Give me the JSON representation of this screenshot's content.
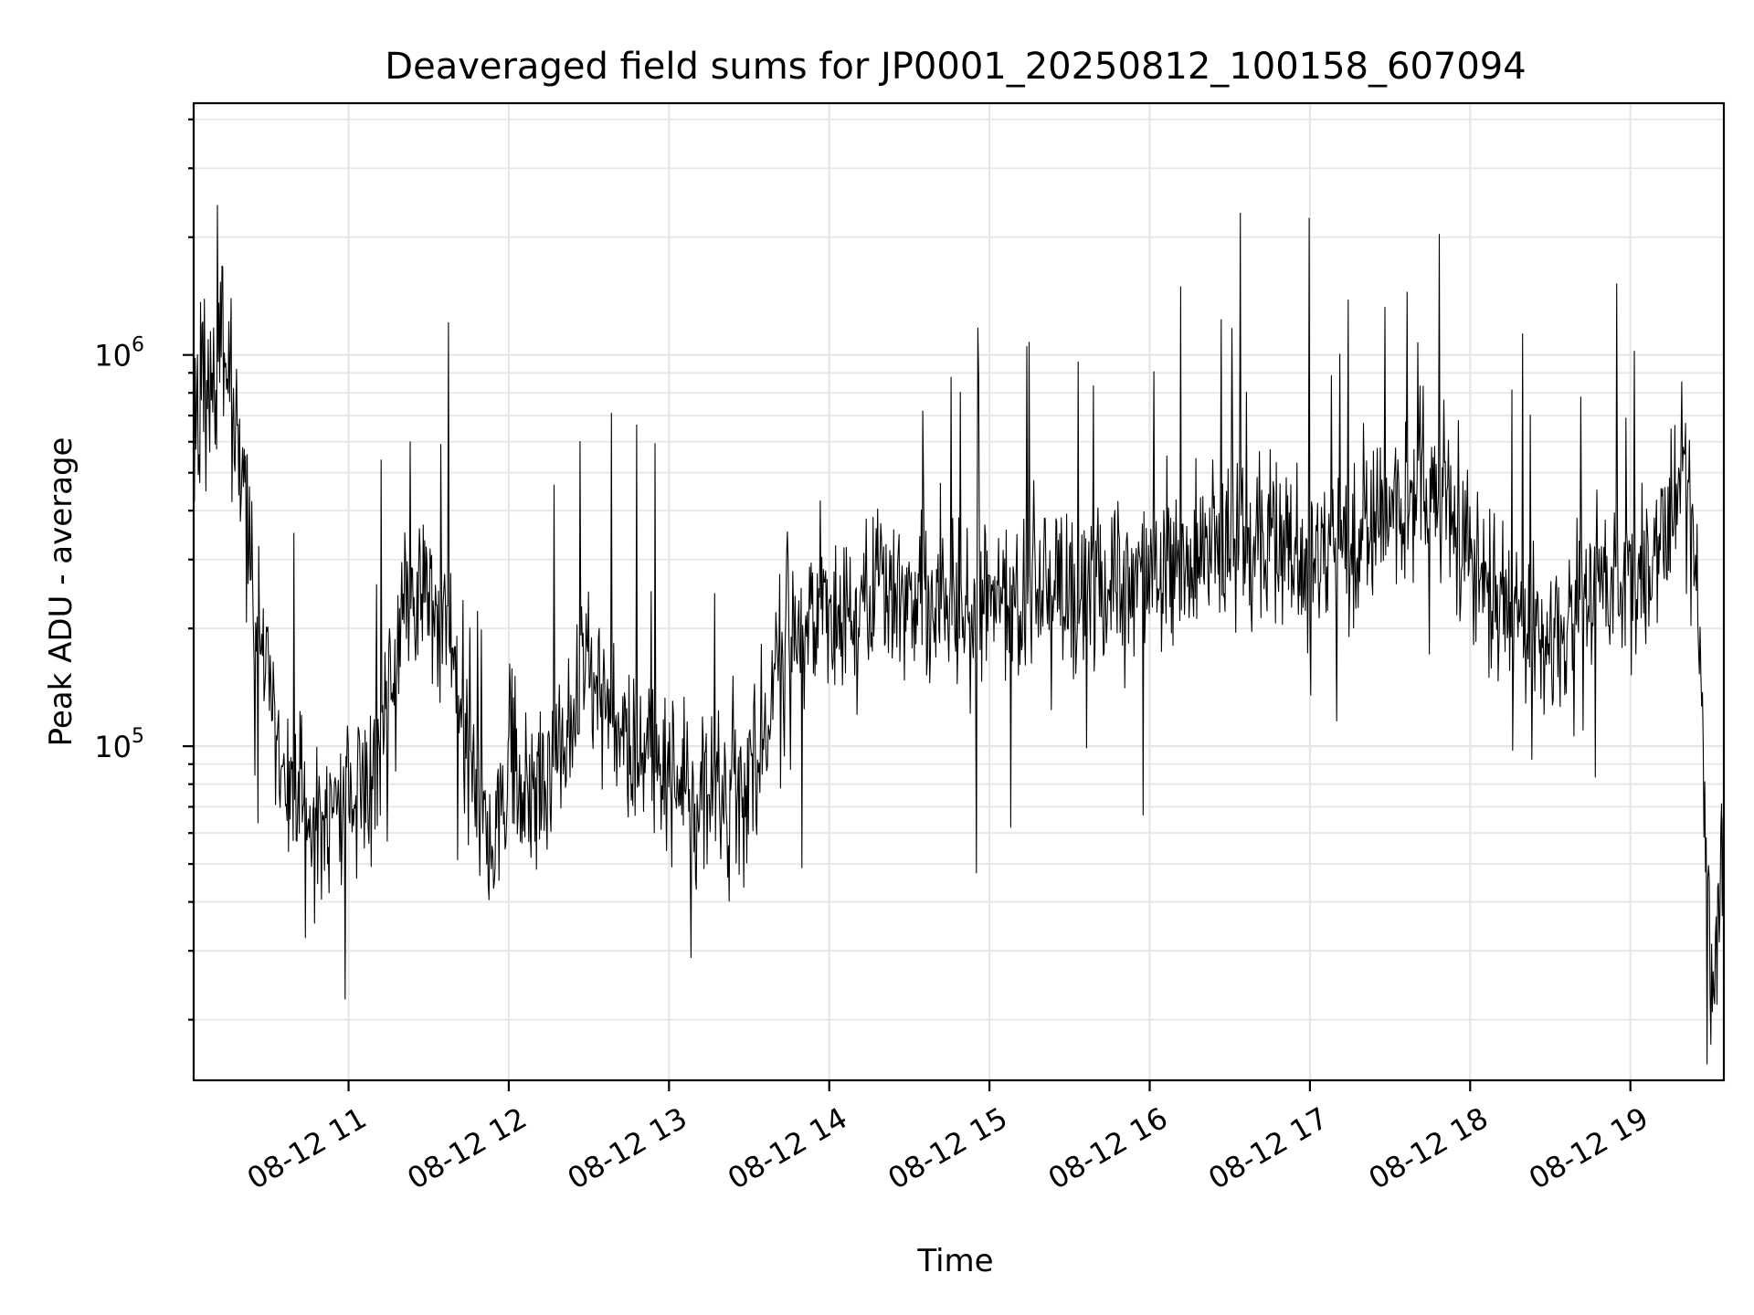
{
  "chart_data": {
    "type": "line",
    "title": "Deaveraged field sums for JP0001_20250812_100158_607094",
    "xlabel": "Time",
    "ylabel": "Peak ADU - average",
    "yscale": "log",
    "ylim": [
      14000,
      4400000
    ],
    "xlim": [
      "2025-08-12 10:02",
      "2025-08-12 19:35"
    ],
    "grid": true,
    "x_ticks": [
      "08-12 11",
      "08-12 12",
      "08-12 13",
      "08-12 14",
      "08-12 15",
      "08-12 16",
      "08-12 17",
      "08-12 18",
      "08-12 19"
    ],
    "y_ticks": [
      "10^5",
      "10^6"
    ],
    "series": [
      {
        "color": "#000000",
        "x": [
          "2025-08-12 10:02",
          "2025-08-12 10:10",
          "2025-08-12 10:15",
          "2025-08-12 10:20",
          "2025-08-12 10:25",
          "2025-08-12 10:30",
          "2025-08-12 10:35",
          "2025-08-12 10:40",
          "2025-08-12 10:45",
          "2025-08-12 10:50",
          "2025-08-12 10:55",
          "2025-08-12 11:00",
          "2025-08-12 11:10",
          "2025-08-12 11:20",
          "2025-08-12 11:30",
          "2025-08-12 11:40",
          "2025-08-12 11:50",
          "2025-08-12 11:55",
          "2025-08-12 12:00",
          "2025-08-12 12:05",
          "2025-08-12 12:15",
          "2025-08-12 12:30",
          "2025-08-12 12:45",
          "2025-08-12 13:00",
          "2025-08-12 13:15",
          "2025-08-12 13:30",
          "2025-08-12 13:45",
          "2025-08-12 14:00",
          "2025-08-12 14:15",
          "2025-08-12 14:30",
          "2025-08-12 15:00",
          "2025-08-12 15:30",
          "2025-08-12 16:00",
          "2025-08-12 16:30",
          "2025-08-12 17:00",
          "2025-08-12 17:30",
          "2025-08-12 17:45",
          "2025-08-12 18:00",
          "2025-08-12 18:15",
          "2025-08-12 18:30",
          "2025-08-12 18:45",
          "2025-08-12 19:00",
          "2025-08-12 19:10",
          "2025-08-12 19:20",
          "2025-08-12 19:25",
          "2025-08-12 19:30",
          "2025-08-12 19:35"
        ],
        "y": [
          800000,
          850000,
          1000000,
          500000,
          300000,
          150000,
          90000,
          80000,
          65000,
          60000,
          70000,
          68000,
          90000,
          200000,
          280000,
          170000,
          70000,
          55000,
          90000,
          70000,
          80000,
          150000,
          100000,
          80000,
          75000,
          80000,
          200000,
          220000,
          230000,
          240000,
          230000,
          260000,
          270000,
          330000,
          300000,
          400000,
          500000,
          300000,
          220000,
          180000,
          250000,
          280000,
          300000,
          550000,
          250000,
          25000,
          50000
        ]
      }
    ]
  }
}
